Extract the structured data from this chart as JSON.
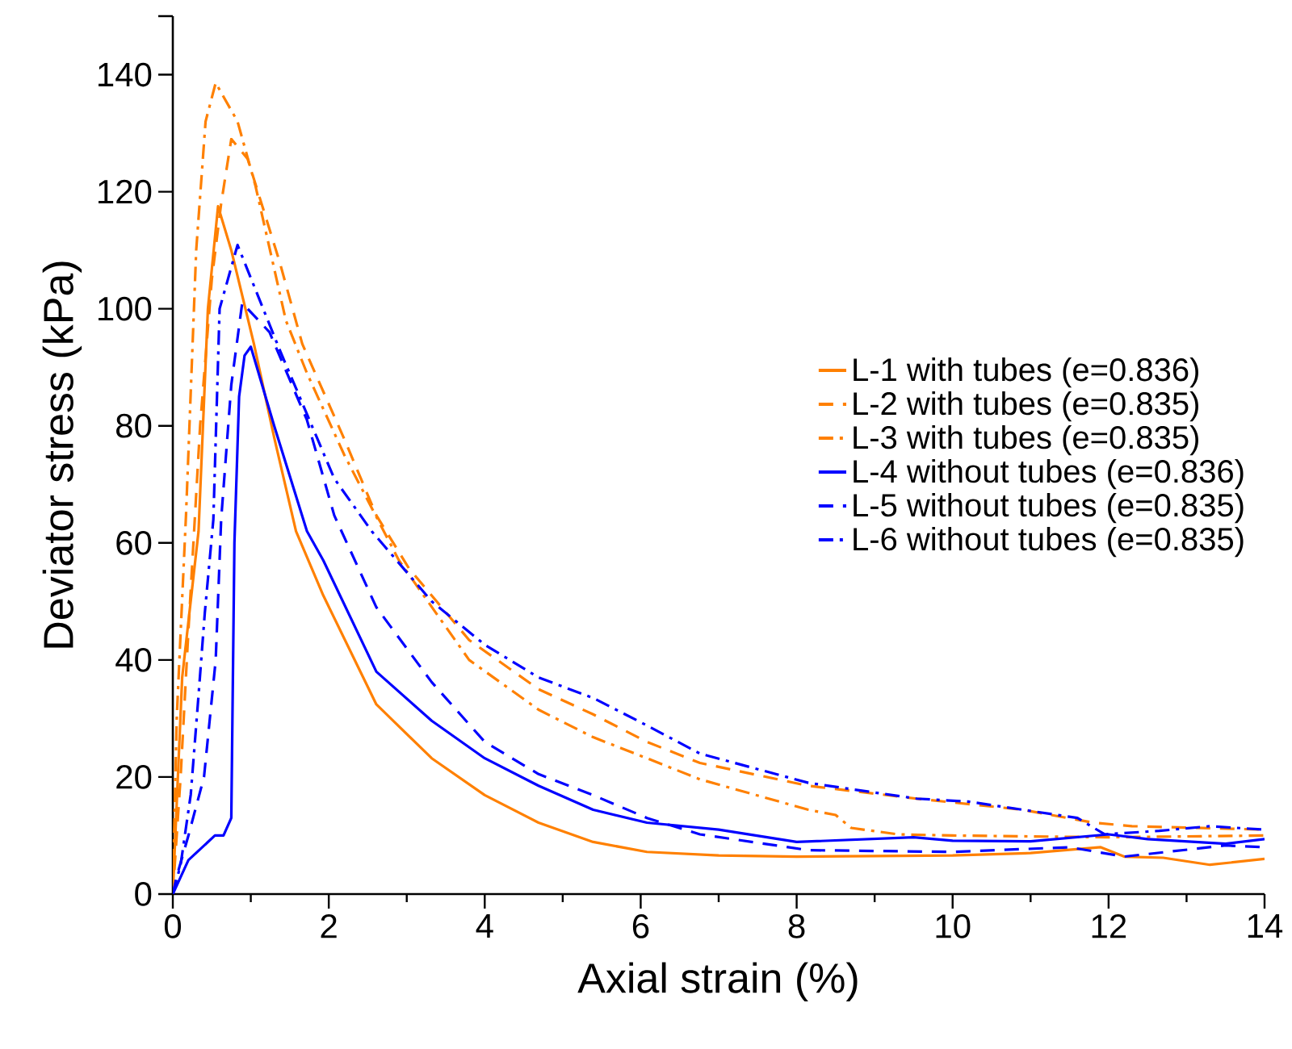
{
  "chart_data": {
    "type": "line",
    "xlabel": "Axial strain (%)",
    "ylabel": "Deviator stress (kPa)",
    "xlim": [
      0,
      14
    ],
    "ylim": [
      0,
      150
    ],
    "xticks": [
      0,
      2,
      4,
      6,
      8,
      10,
      12,
      14
    ],
    "yticks": [
      0,
      20,
      40,
      60,
      80,
      100,
      120,
      140,
      {
        "value": 150,
        "label": null
      }
    ],
    "legend": "right",
    "grid": false,
    "series": [
      {
        "name": "L-1 with tubes (e=0.836)",
        "color": "#ff8000",
        "line_style": "solid",
        "x": [
          0,
          0.12,
          0.33,
          0.45,
          0.58,
          0.75,
          1.04,
          1.3,
          1.58,
          1.93,
          2.61,
          3.32,
          4.0,
          4.69,
          5.39,
          6.08,
          7.0,
          8.0,
          9.0,
          10.0,
          11.0,
          11.9,
          12.2,
          12.7,
          13.3,
          14.0
        ],
        "values": [
          0,
          37,
          62,
          100,
          117.5,
          110,
          94,
          78,
          62,
          51,
          32.4,
          23.2,
          16.9,
          12.2,
          8.9,
          7.2,
          6.6,
          6.4,
          6.5,
          6.6,
          7,
          8,
          6.4,
          6.2,
          5,
          6
        ]
      },
      {
        "name": "L-2 with tubes (e=0.835)",
        "color": "#ff8000",
        "line_style": "dashed",
        "x": [
          0,
          0.1,
          0.2,
          0.35,
          0.5,
          0.62,
          0.75,
          0.96,
          1.37,
          1.66,
          2.2,
          2.61,
          3.03,
          3.8,
          4.69,
          5.39,
          6.08,
          6.76,
          8.15,
          9.54,
          10.9,
          11.8,
          12.3,
          14.0
        ],
        "values": [
          0,
          20,
          45,
          80,
          105,
          118,
          129,
          125.6,
          108,
          94,
          77.7,
          64.7,
          55.6,
          43.4,
          35,
          30.7,
          26,
          22.4,
          18.5,
          16.3,
          14.4,
          12.2,
          11.6,
          11
        ]
      },
      {
        "name": "L-3 with tubes (e=0.835)",
        "color": "#ff8000",
        "line_style": "dashdot",
        "x": [
          0,
          0.05,
          0.17,
          0.3,
          0.42,
          0.55,
          0.83,
          1.06,
          1.45,
          1.72,
          2.2,
          2.9,
          3.8,
          4.69,
          5.39,
          6.08,
          6.76,
          8.15,
          8.5,
          8.7,
          9.3,
          10.0,
          12.0,
          14.0
        ],
        "values": [
          0,
          30,
          65,
          110,
          132,
          138.6,
          132,
          121,
          98,
          89,
          75,
          57,
          40,
          31.5,
          26.8,
          23.2,
          19.6,
          14.4,
          13.5,
          11.3,
          10.2,
          10,
          9.7,
          10
        ]
      },
      {
        "name": "L-4 without tubes (e=0.836)",
        "color": "#0000ff",
        "line_style": "solid",
        "x": [
          0,
          0.2,
          0.54,
          0.65,
          0.75,
          0.79,
          0.85,
          0.92,
          1.0,
          1.3,
          1.72,
          1.93,
          2.61,
          3.32,
          4.0,
          4.69,
          5.39,
          6.08,
          7.0,
          8.0,
          9.5,
          10.0,
          11.0,
          12.0,
          12.5,
          13.5,
          14.0
        ],
        "values": [
          0,
          5.8,
          10,
          10,
          13,
          60,
          85,
          92,
          93.5,
          80,
          62,
          57,
          38,
          29.6,
          23.2,
          18.5,
          14.4,
          12.2,
          11,
          8.9,
          9.7,
          9.1,
          9,
          10.2,
          9.4,
          8.6,
          9.4
        ]
      },
      {
        "name": "L-5 without tubes (e=0.835)",
        "color": "#0000ff",
        "line_style": "dashed",
        "x": [
          0,
          0.05,
          0.2,
          0.4,
          0.55,
          0.62,
          0.75,
          0.89,
          1.24,
          1.72,
          2.07,
          2.61,
          3.32,
          4.0,
          4.69,
          5.39,
          6.08,
          6.76,
          8.15,
          10.0,
          11.5,
          12.2,
          13.5,
          14.0
        ],
        "values": [
          0,
          3,
          10,
          20,
          40,
          64,
          87,
          101,
          96,
          81,
          64.7,
          49,
          36.2,
          26,
          20.5,
          16.9,
          13,
          10.2,
          7.5,
          7.2,
          8,
          6.4,
          8.3,
          8
        ]
      },
      {
        "name": "L-6 without tubes (e=0.835)",
        "color": "#0000ff",
        "line_style": "dashdot",
        "x": [
          0,
          0.1,
          0.23,
          0.33,
          0.41,
          0.52,
          0.6,
          0.83,
          1.37,
          2.07,
          2.55,
          3.32,
          4.0,
          4.69,
          5.39,
          6.08,
          6.76,
          8.15,
          9.54,
          10.2,
          11.6,
          11.95,
          12.65,
          13.3,
          14.0
        ],
        "values": [
          0,
          5,
          17,
          34,
          48,
          64,
          100,
          110.9,
          93,
          71,
          62,
          50,
          42.6,
          37,
          33.5,
          28.8,
          24,
          19,
          16.3,
          15.8,
          13,
          10.2,
          10.8,
          11.6,
          11
        ]
      }
    ]
  }
}
